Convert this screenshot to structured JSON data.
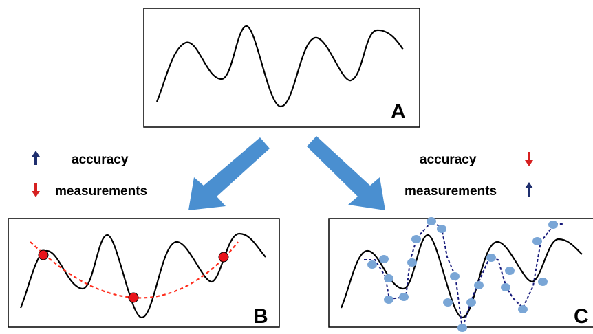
{
  "panels": {
    "a": {
      "letter": "A"
    },
    "b": {
      "letter": "B"
    },
    "c": {
      "letter": "C"
    }
  },
  "left_legend": {
    "accuracy_label": "accuracy",
    "accuracy_direction": "up",
    "measurements_label": "measurements",
    "measurements_direction": "down"
  },
  "right_legend": {
    "accuracy_label": "accuracy",
    "accuracy_direction": "down",
    "measurements_label": "measurements",
    "measurements_direction": "up"
  },
  "colors": {
    "curve": "#000000",
    "arrow_blue": "#4a8fd0",
    "arrow_up": "#1f2f6e",
    "arrow_down": "#d62020",
    "fit_red": "#ff2a1a",
    "sample_red": "#e8141b",
    "sample_blue": "#7aa6d6",
    "fit_blue": "#16197a"
  }
}
